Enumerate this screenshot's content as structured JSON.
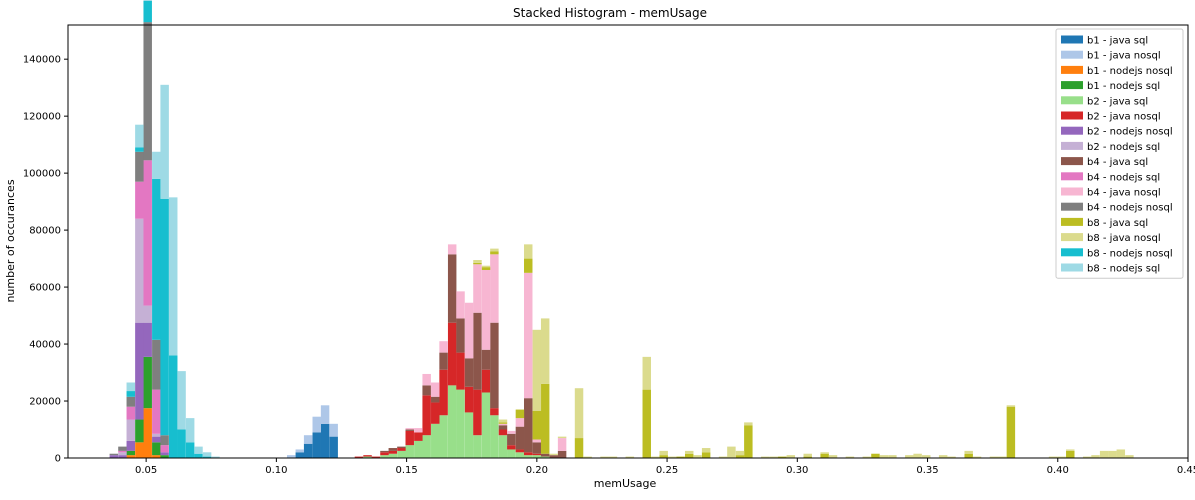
{
  "chart_data": {
    "type": "bar",
    "title": "Stacked Histogram - memUsage",
    "xlabel": "memUsage",
    "ylabel": "number of occurances",
    "xlim": [
      0.02,
      0.45
    ],
    "ylim": [
      0,
      152000
    ],
    "x_ticks": [
      0.05,
      0.1,
      0.15,
      0.2,
      0.25,
      0.3,
      0.35,
      0.4,
      0.45
    ],
    "x_tick_labels": [
      "0.05",
      "0.10",
      "0.15",
      "0.20",
      "0.25",
      "0.30",
      "0.35",
      "0.40",
      "0.45"
    ],
    "y_ticks": [
      0,
      20000,
      40000,
      60000,
      80000,
      100000,
      120000,
      140000
    ],
    "y_tick_labels": [
      "0",
      "20000",
      "40000",
      "60000",
      "80000",
      "100000",
      "120000",
      "140000"
    ],
    "legend_position": "top-right",
    "grid": false,
    "bin_width": 0.00325,
    "series": [
      {
        "name": "b1 - java sql",
        "color": "#1f77b4",
        "bars": [
          [
            0.109,
            2000
          ],
          [
            0.1122,
            5000
          ],
          [
            0.1155,
            9000
          ],
          [
            0.1187,
            12000
          ],
          [
            0.122,
            7500
          ]
        ]
      },
      {
        "name": "b1 - java nosql",
        "color": "#aec7e8",
        "bars": [
          [
            0.1057,
            1000
          ],
          [
            0.109,
            1000
          ],
          [
            0.1122,
            3000
          ],
          [
            0.1155,
            5500
          ],
          [
            0.1187,
            6500
          ],
          [
            0.122,
            4500
          ]
        ]
      },
      {
        "name": "b1 - nodejs nosql",
        "color": "#ff7f0e",
        "bars": [
          [
            0.0441,
            1000
          ],
          [
            0.0474,
            5500
          ],
          [
            0.0506,
            17500
          ],
          [
            0.0539,
            1000
          ]
        ]
      },
      {
        "name": "b1 - nodejs sql",
        "color": "#2ca02c",
        "bars": [
          [
            0.0441,
            1500
          ],
          [
            0.0474,
            8000
          ],
          [
            0.0506,
            18000
          ],
          [
            0.0539,
            4500
          ],
          [
            0.0571,
            1000
          ]
        ]
      },
      {
        "name": "b2 - java sql",
        "color": "#98df8a",
        "bars": [
          [
            0.135,
            500
          ],
          [
            0.1415,
            1000
          ],
          [
            0.1447,
            1500
          ],
          [
            0.148,
            2500
          ],
          [
            0.1512,
            4500
          ],
          [
            0.1545,
            6000
          ],
          [
            0.1577,
            8000
          ],
          [
            0.161,
            12000
          ],
          [
            0.1642,
            15000
          ],
          [
            0.1675,
            25500
          ],
          [
            0.1707,
            24000
          ],
          [
            0.174,
            16000
          ],
          [
            0.1772,
            8000
          ],
          [
            0.1805,
            23000
          ],
          [
            0.1837,
            15000
          ],
          [
            0.187,
            8000
          ],
          [
            0.1902,
            3000
          ],
          [
            0.1935,
            2000
          ],
          [
            0.1967,
            1000
          ],
          [
            0.2,
            1000
          ],
          [
            0.2032,
            500
          ]
        ]
      },
      {
        "name": "b2 - java nosql",
        "color": "#d62728",
        "bars": [
          [
            0.1317,
            500
          ],
          [
            0.135,
            500
          ],
          [
            0.1382,
            500
          ],
          [
            0.1415,
            1000
          ],
          [
            0.1447,
            1000
          ],
          [
            0.148,
            1000
          ],
          [
            0.1512,
            5000
          ],
          [
            0.1545,
            3000
          ],
          [
            0.1577,
            14000
          ],
          [
            0.161,
            7500
          ],
          [
            0.1642,
            16000
          ],
          [
            0.1675,
            22000
          ],
          [
            0.1707,
            13000
          ],
          [
            0.174,
            9000
          ],
          [
            0.1772,
            16000
          ],
          [
            0.1805,
            8000
          ],
          [
            0.1837,
            2500
          ],
          [
            0.187,
            2000
          ],
          [
            0.1902,
            1500
          ],
          [
            0.1935,
            1000
          ],
          [
            0.1967,
            1000
          ],
          [
            0.2,
            500
          ]
        ]
      },
      {
        "name": "b2 - nodejs nosql",
        "color": "#9467bd",
        "bars": [
          [
            0.0376,
            1000
          ],
          [
            0.0409,
            1000
          ],
          [
            0.0441,
            3500
          ],
          [
            0.0474,
            34000
          ],
          [
            0.0506,
            12000
          ],
          [
            0.0539,
            2000
          ],
          [
            0.0571,
            1000
          ]
        ]
      },
      {
        "name": "b2 - nodejs sql",
        "color": "#c5b0d5",
        "bars": [
          [
            0.0409,
            1000
          ],
          [
            0.0441,
            7500
          ],
          [
            0.0474,
            36500
          ],
          [
            0.0506,
            6000
          ],
          [
            0.0539,
            1000
          ]
        ]
      },
      {
        "name": "b4 - java sql",
        "color": "#8c564b",
        "bars": [
          [
            0.1415,
            500
          ],
          [
            0.1447,
            1000
          ],
          [
            0.148,
            500
          ],
          [
            0.1512,
            500
          ],
          [
            0.1577,
            3500
          ],
          [
            0.161,
            2000
          ],
          [
            0.1642,
            6000
          ],
          [
            0.1675,
            24000
          ],
          [
            0.1707,
            12000
          ],
          [
            0.174,
            10000
          ],
          [
            0.1772,
            27000
          ],
          [
            0.1805,
            7000
          ],
          [
            0.1837,
            30000
          ],
          [
            0.187,
            1500
          ],
          [
            0.1902,
            4000
          ],
          [
            0.1935,
            8000
          ],
          [
            0.1967,
            19000
          ],
          [
            0.2,
            4000
          ],
          [
            0.2032,
            1000
          ],
          [
            0.2065,
            1000
          ],
          [
            0.2097,
            2500
          ]
        ]
      },
      {
        "name": "b4 - nodejs sql",
        "color": "#e377c2",
        "bars": [
          [
            0.0409,
            500
          ],
          [
            0.0441,
            4500
          ],
          [
            0.0474,
            13000
          ],
          [
            0.0506,
            51000
          ],
          [
            0.0539,
            15500
          ],
          [
            0.0571,
            2500
          ]
        ]
      },
      {
        "name": "b4 - java nosql",
        "color": "#f7b6d2",
        "bars": [
          [
            0.1512,
            500
          ],
          [
            0.1545,
            1500
          ],
          [
            0.1577,
            4000
          ],
          [
            0.161,
            5000
          ],
          [
            0.1642,
            4000
          ],
          [
            0.1675,
            3500
          ],
          [
            0.1707,
            9500
          ],
          [
            0.174,
            19500
          ],
          [
            0.1772,
            17000
          ],
          [
            0.1805,
            28000
          ],
          [
            0.1837,
            24000
          ],
          [
            0.187,
            500
          ],
          [
            0.1902,
            1000
          ],
          [
            0.1935,
            3000
          ],
          [
            0.1967,
            44000
          ],
          [
            0.2,
            1000
          ],
          [
            0.2097,
            4500
          ]
        ]
      },
      {
        "name": "b4 - nodejs nosql",
        "color": "#7f7f7f",
        "bars": [
          [
            0.0376,
            500
          ],
          [
            0.0409,
            1500
          ],
          [
            0.0441,
            3500
          ],
          [
            0.0474,
            10500
          ],
          [
            0.0506,
            48500
          ],
          [
            0.0539,
            17500
          ],
          [
            0.0571,
            3500
          ]
        ]
      },
      {
        "name": "b8 - java sql",
        "color": "#bcbd22",
        "bars": [
          [
            0.1772,
            500
          ],
          [
            0.1805,
            1000
          ],
          [
            0.1837,
            1000
          ],
          [
            0.187,
            500
          ],
          [
            0.1935,
            3000
          ],
          [
            0.1967,
            5000
          ],
          [
            0.2,
            10000
          ],
          [
            0.2032,
            24500
          ],
          [
            0.2162,
            7000
          ],
          [
            0.2422,
            24000
          ],
          [
            0.2487,
            1000
          ],
          [
            0.2552,
            500
          ],
          [
            0.2585,
            1500
          ],
          [
            0.265,
            2000
          ],
          [
            0.278,
            1000
          ],
          [
            0.2812,
            11500
          ],
          [
            0.2942,
            500
          ],
          [
            0.304,
            500
          ],
          [
            0.3105,
            1500
          ],
          [
            0.33,
            1500
          ],
          [
            0.3658,
            1500
          ],
          [
            0.382,
            18000
          ],
          [
            0.4048,
            2500
          ]
        ]
      },
      {
        "name": "b8 - java nosql",
        "color": "#dbdb8d",
        "bars": [
          [
            0.1772,
            1000
          ],
          [
            0.1805,
            500
          ],
          [
            0.1837,
            1000
          ],
          [
            0.187,
            1000
          ],
          [
            0.1967,
            5000
          ],
          [
            0.2,
            28500
          ],
          [
            0.2032,
            23000
          ],
          [
            0.2065,
            500
          ],
          [
            0.2097,
            500
          ],
          [
            0.2162,
            17500
          ],
          [
            0.2195,
            500
          ],
          [
            0.226,
            500
          ],
          [
            0.2292,
            500
          ],
          [
            0.2357,
            500
          ],
          [
            0.2422,
            11500
          ],
          [
            0.2455,
            500
          ],
          [
            0.2487,
            1500
          ],
          [
            0.252,
            500
          ],
          [
            0.2585,
            1000
          ],
          [
            0.2617,
            1000
          ],
          [
            0.265,
            1500
          ],
          [
            0.2715,
            500
          ],
          [
            0.2747,
            4000
          ],
          [
            0.278,
            1500
          ],
          [
            0.2812,
            1000
          ],
          [
            0.2877,
            500
          ],
          [
            0.291,
            500
          ],
          [
            0.2975,
            1000
          ],
          [
            0.304,
            1000
          ],
          [
            0.3105,
            500
          ],
          [
            0.3137,
            1000
          ],
          [
            0.3202,
            500
          ],
          [
            0.3267,
            500
          ],
          [
            0.3332,
            1000
          ],
          [
            0.3365,
            1000
          ],
          [
            0.343,
            1000
          ],
          [
            0.3462,
            1500
          ],
          [
            0.3495,
            1000
          ],
          [
            0.356,
            1000
          ],
          [
            0.3592,
            500
          ],
          [
            0.3658,
            1000
          ],
          [
            0.369,
            500
          ],
          [
            0.3755,
            500
          ],
          [
            0.3787,
            500
          ],
          [
            0.382,
            500
          ],
          [
            0.3982,
            500
          ],
          [
            0.4015,
            500
          ],
          [
            0.4048,
            500
          ],
          [
            0.4113,
            500
          ],
          [
            0.4145,
            1000
          ],
          [
            0.4178,
            2500
          ],
          [
            0.421,
            2500
          ],
          [
            0.4242,
            3000
          ],
          [
            0.4275,
            1000
          ]
        ]
      },
      {
        "name": "b8 - nodejs nosql",
        "color": "#17becf",
        "bars": [
          [
            0.0441,
            2000
          ],
          [
            0.0474,
            1500
          ],
          [
            0.0506,
            7500
          ],
          [
            0.0539,
            56500
          ],
          [
            0.0571,
            83000
          ],
          [
            0.0604,
            36000
          ],
          [
            0.0636,
            10000
          ],
          [
            0.0669,
            5500
          ],
          [
            0.0701,
            1500
          ],
          [
            0.0734,
            500
          ]
        ]
      },
      {
        "name": "b8 - nodejs sql",
        "color": "#9edae5",
        "bars": [
          [
            0.0441,
            3000
          ],
          [
            0.0474,
            8000
          ],
          [
            0.0506,
            4500
          ],
          [
            0.0539,
            9500
          ],
          [
            0.0571,
            40000
          ],
          [
            0.0604,
            55500
          ],
          [
            0.0636,
            20500
          ],
          [
            0.0669,
            8500
          ],
          [
            0.0701,
            2500
          ],
          [
            0.0734,
            1500
          ],
          [
            0.0766,
            500
          ]
        ]
      }
    ]
  }
}
